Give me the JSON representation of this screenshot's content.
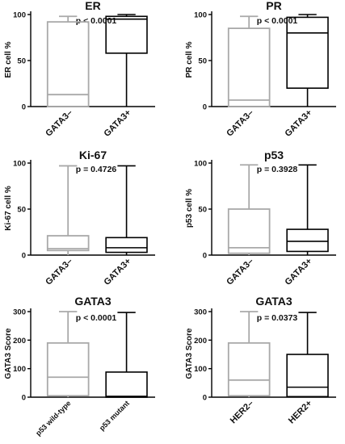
{
  "colors": {
    "gray_box": "#a9a9a9",
    "black_box": "#000000",
    "axis": "#000000"
  },
  "chart_data": [
    {
      "type": "box",
      "title": "ER",
      "ylabel": "ER cell %",
      "ylim": [
        0,
        100
      ],
      "yticks": [
        "0",
        "50",
        "100"
      ],
      "pvalue": "p < 0.0001",
      "categories": [
        "GATA3–",
        "GATA3+"
      ],
      "boxes": [
        {
          "name": "GATA3–",
          "min": 0,
          "q1": 0,
          "median": 13,
          "q3": 92,
          "max": 98,
          "color": "gray"
        },
        {
          "name": "GATA3+",
          "min": 0,
          "q1": 58,
          "median": 95,
          "q3": 98,
          "max": 100,
          "color": "black"
        }
      ]
    },
    {
      "type": "box",
      "title": "PR",
      "ylabel": "PR cell %",
      "ylim": [
        0,
        100
      ],
      "yticks": [
        "0",
        "50",
        "100"
      ],
      "pvalue": "p < 0.0001",
      "categories": [
        "GATA3–",
        "GATA3+"
      ],
      "boxes": [
        {
          "name": "GATA3–",
          "min": 0,
          "q1": 0,
          "median": 7,
          "q3": 85,
          "max": 98,
          "color": "gray"
        },
        {
          "name": "GATA3+",
          "min": 0,
          "q1": 20,
          "median": 80,
          "q3": 97,
          "max": 100,
          "color": "black"
        }
      ]
    },
    {
      "type": "box",
      "title": "Ki-67",
      "ylabel": "Ki-67 cell %",
      "ylim": [
        0,
        100
      ],
      "yticks": [
        "0",
        "50",
        "100"
      ],
      "pvalue": "p = 0.4726",
      "categories": [
        "GATA3–",
        "GATA3+"
      ],
      "boxes": [
        {
          "name": "GATA3–",
          "min": 0,
          "q1": 5,
          "median": 7,
          "q3": 21,
          "max": 97,
          "color": "gray"
        },
        {
          "name": "GATA3+",
          "min": 0,
          "q1": 3,
          "median": 8,
          "q3": 19,
          "max": 97,
          "color": "black"
        }
      ]
    },
    {
      "type": "box",
      "title": "p53",
      "ylabel": "p53 cell %",
      "ylim": [
        0,
        100
      ],
      "yticks": [
        "0",
        "50",
        "100"
      ],
      "pvalue": "p = 0.3928",
      "categories": [
        "GATA3–",
        "GATA3+"
      ],
      "boxes": [
        {
          "name": "GATA3–",
          "min": 0,
          "q1": 2,
          "median": 8,
          "q3": 50,
          "max": 98,
          "color": "gray"
        },
        {
          "name": "GATA3+",
          "min": 0,
          "q1": 4,
          "median": 15,
          "q3": 28,
          "max": 98,
          "color": "black"
        }
      ]
    },
    {
      "type": "box",
      "title": "GATA3",
      "ylabel": "GATA3 Score",
      "ylim": [
        0,
        300
      ],
      "yticks": [
        "0",
        "100",
        "200",
        "300"
      ],
      "pvalue": "p < 0.0001",
      "categories": [
        "p53 wild-type",
        "p53 mutant"
      ],
      "small_ticks": true,
      "boxes": [
        {
          "name": "p53 wild-type",
          "min": 0,
          "q1": 5,
          "median": 70,
          "q3": 190,
          "max": 300,
          "color": "gray"
        },
        {
          "name": "p53 mutant",
          "min": 0,
          "q1": 0,
          "median": 3,
          "q3": 88,
          "max": 297,
          "color": "black"
        }
      ]
    },
    {
      "type": "box",
      "title": "GATA3",
      "ylabel": "GATA3 Score",
      "ylim": [
        0,
        300
      ],
      "yticks": [
        "0",
        "100",
        "200",
        "300"
      ],
      "pvalue": "p = 0.0373",
      "categories": [
        "HER2–",
        "HER2+"
      ],
      "boxes": [
        {
          "name": "HER2–",
          "min": 0,
          "q1": 5,
          "median": 60,
          "q3": 190,
          "max": 300,
          "color": "gray"
        },
        {
          "name": "HER2+",
          "min": 0,
          "q1": 2,
          "median": 35,
          "q3": 150,
          "max": 297,
          "color": "black"
        }
      ]
    }
  ]
}
